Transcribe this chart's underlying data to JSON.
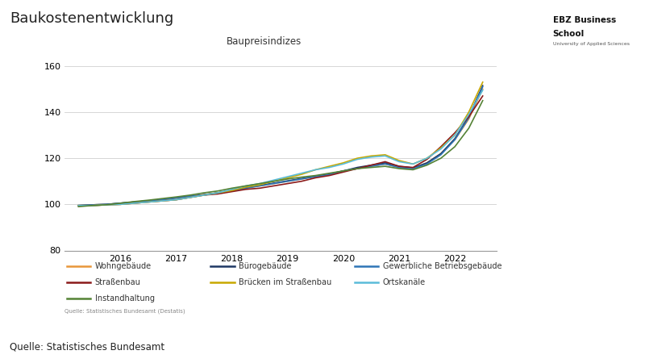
{
  "title": "Baukostenentwicklung",
  "subtitle": "Baupreisindizes",
  "source_main": "Quelle: Statistisches Bundesamt",
  "source_small": "Quelle: Statistisches Bundesamt (Destatis)",
  "ylim": [
    80,
    165
  ],
  "yticks": [
    80,
    100,
    120,
    140,
    160
  ],
  "xtick_positions": [
    2016,
    2017,
    2018,
    2019,
    2020,
    2021,
    2022
  ],
  "xlim": [
    2015.0,
    2022.75
  ],
  "series": [
    {
      "label": "Wohngebäude",
      "color": "#E8973A",
      "data_x": [
        2015.25,
        2015.5,
        2015.75,
        2016.0,
        2016.25,
        2016.5,
        2016.75,
        2017.0,
        2017.25,
        2017.5,
        2017.75,
        2018.0,
        2018.25,
        2018.5,
        2018.75,
        2019.0,
        2019.25,
        2019.5,
        2019.75,
        2020.0,
        2020.25,
        2020.5,
        2020.75,
        2021.0,
        2021.25,
        2021.5,
        2021.75,
        2022.0,
        2022.25,
        2022.5
      ],
      "data_y": [
        99.5,
        99.8,
        100.0,
        100.5,
        101.0,
        101.5,
        102.0,
        102.8,
        103.5,
        104.2,
        105.0,
        106.0,
        107.0,
        108.0,
        109.0,
        110.0,
        111.0,
        112.0,
        113.0,
        114.5,
        115.5,
        116.5,
        117.5,
        116.0,
        115.5,
        118.0,
        122.0,
        128.0,
        137.0,
        150.0
      ]
    },
    {
      "label": "Bürogebäude",
      "color": "#1F3864",
      "data_x": [
        2015.25,
        2015.5,
        2015.75,
        2016.0,
        2016.25,
        2016.5,
        2016.75,
        2017.0,
        2017.25,
        2017.5,
        2017.75,
        2018.0,
        2018.25,
        2018.5,
        2018.75,
        2019.0,
        2019.25,
        2019.5,
        2019.75,
        2020.0,
        2020.25,
        2020.5,
        2020.75,
        2021.0,
        2021.25,
        2021.5,
        2021.75,
        2022.0,
        2022.25,
        2022.5
      ],
      "data_y": [
        99.5,
        99.8,
        100.0,
        100.5,
        101.0,
        101.5,
        102.0,
        102.8,
        103.5,
        104.2,
        105.0,
        106.0,
        107.2,
        108.2,
        109.2,
        110.2,
        111.2,
        112.2,
        113.2,
        114.5,
        116.0,
        117.0,
        118.0,
        116.5,
        115.8,
        118.0,
        122.0,
        128.5,
        138.0,
        151.5
      ]
    },
    {
      "label": "Gewerbliche Betriebsgebäude",
      "color": "#2E75B6",
      "data_x": [
        2015.25,
        2015.5,
        2015.75,
        2016.0,
        2016.25,
        2016.5,
        2016.75,
        2017.0,
        2017.25,
        2017.5,
        2017.75,
        2018.0,
        2018.25,
        2018.5,
        2018.75,
        2019.0,
        2019.25,
        2019.5,
        2019.75,
        2020.0,
        2020.25,
        2020.5,
        2020.75,
        2021.0,
        2021.25,
        2021.5,
        2021.75,
        2022.0,
        2022.25,
        2022.5
      ],
      "data_y": [
        99.5,
        99.8,
        100.0,
        100.5,
        101.0,
        101.5,
        102.0,
        102.8,
        103.5,
        104.0,
        105.0,
        106.0,
        107.0,
        108.0,
        109.0,
        110.0,
        111.0,
        112.0,
        113.0,
        114.5,
        115.5,
        116.5,
        117.5,
        116.0,
        115.5,
        117.5,
        121.5,
        128.0,
        137.5,
        151.0
      ]
    },
    {
      "label": "Straßenbau",
      "color": "#8B1A1A",
      "data_x": [
        2015.25,
        2015.5,
        2015.75,
        2016.0,
        2016.25,
        2016.5,
        2016.75,
        2017.0,
        2017.25,
        2017.5,
        2017.75,
        2018.0,
        2018.25,
        2018.5,
        2018.75,
        2019.0,
        2019.25,
        2019.5,
        2019.75,
        2020.0,
        2020.25,
        2020.5,
        2020.75,
        2021.0,
        2021.25,
        2021.5,
        2021.75,
        2022.0,
        2022.25,
        2022.5
      ],
      "data_y": [
        99.5,
        99.5,
        99.8,
        100.0,
        100.5,
        101.0,
        101.5,
        102.0,
        103.0,
        104.0,
        104.5,
        105.5,
        106.5,
        107.0,
        108.0,
        109.0,
        110.0,
        111.5,
        112.5,
        114.0,
        115.5,
        117.0,
        118.5,
        116.5,
        116.0,
        119.5,
        125.0,
        131.0,
        138.0,
        147.0
      ]
    },
    {
      "label": "Brücken im Straßenbau",
      "color": "#C8A800",
      "data_x": [
        2015.25,
        2015.5,
        2015.75,
        2016.0,
        2016.25,
        2016.5,
        2016.75,
        2017.0,
        2017.25,
        2017.5,
        2017.75,
        2018.0,
        2018.25,
        2018.5,
        2018.75,
        2019.0,
        2019.25,
        2019.5,
        2019.75,
        2020.0,
        2020.25,
        2020.5,
        2020.75,
        2021.0,
        2021.25,
        2021.5,
        2021.75,
        2022.0,
        2022.25,
        2022.5
      ],
      "data_y": [
        99.5,
        99.5,
        99.8,
        100.0,
        100.5,
        101.0,
        101.5,
        102.0,
        103.0,
        104.0,
        105.0,
        106.0,
        107.5,
        108.5,
        110.0,
        111.5,
        113.0,
        115.0,
        116.5,
        118.0,
        120.0,
        121.0,
        121.5,
        119.0,
        117.5,
        120.0,
        124.5,
        130.0,
        140.0,
        153.0
      ]
    },
    {
      "label": "Ortskanäle",
      "color": "#5BBCD9",
      "data_x": [
        2015.25,
        2015.5,
        2015.75,
        2016.0,
        2016.25,
        2016.5,
        2016.75,
        2017.0,
        2017.25,
        2017.5,
        2017.75,
        2018.0,
        2018.25,
        2018.5,
        2018.75,
        2019.0,
        2019.25,
        2019.5,
        2019.75,
        2020.0,
        2020.25,
        2020.5,
        2020.75,
        2021.0,
        2021.25,
        2021.5,
        2021.75,
        2022.0,
        2022.25,
        2022.5
      ],
      "data_y": [
        99.5,
        99.5,
        99.8,
        100.0,
        100.5,
        101.0,
        101.5,
        102.0,
        103.0,
        104.0,
        105.0,
        106.5,
        108.0,
        109.0,
        110.5,
        112.0,
        113.5,
        115.0,
        116.0,
        117.5,
        119.5,
        120.5,
        121.0,
        118.5,
        117.5,
        120.0,
        124.0,
        130.0,
        139.0,
        149.5
      ]
    },
    {
      "label": "Instandhaltung",
      "color": "#548235",
      "data_x": [
        2015.25,
        2015.5,
        2015.75,
        2016.0,
        2016.25,
        2016.5,
        2016.75,
        2017.0,
        2017.25,
        2017.5,
        2017.75,
        2018.0,
        2018.25,
        2018.5,
        2018.75,
        2019.0,
        2019.25,
        2019.5,
        2019.75,
        2020.0,
        2020.25,
        2020.5,
        2020.75,
        2021.0,
        2021.25,
        2021.5,
        2021.75,
        2022.0,
        2022.25,
        2022.5
      ],
      "data_y": [
        99.0,
        99.5,
        99.8,
        100.5,
        101.2,
        101.8,
        102.5,
        103.2,
        104.0,
        105.0,
        105.8,
        107.0,
        108.0,
        109.0,
        110.0,
        111.0,
        111.8,
        112.5,
        113.5,
        114.5,
        115.5,
        116.0,
        116.5,
        115.5,
        115.0,
        117.0,
        120.0,
        125.0,
        133.0,
        145.0
      ]
    }
  ],
  "legend_order": [
    "Wohngebäude",
    "Bürogebäude",
    "Gewerbliche Betriebsgebäude",
    "Straßenbau",
    "Brücken im Straßenbau",
    "Ortskanäle",
    "Instandhaltung"
  ],
  "background_color": "#FFFFFF",
  "grid_color": "#D0D0D0",
  "line_width": 1.2
}
